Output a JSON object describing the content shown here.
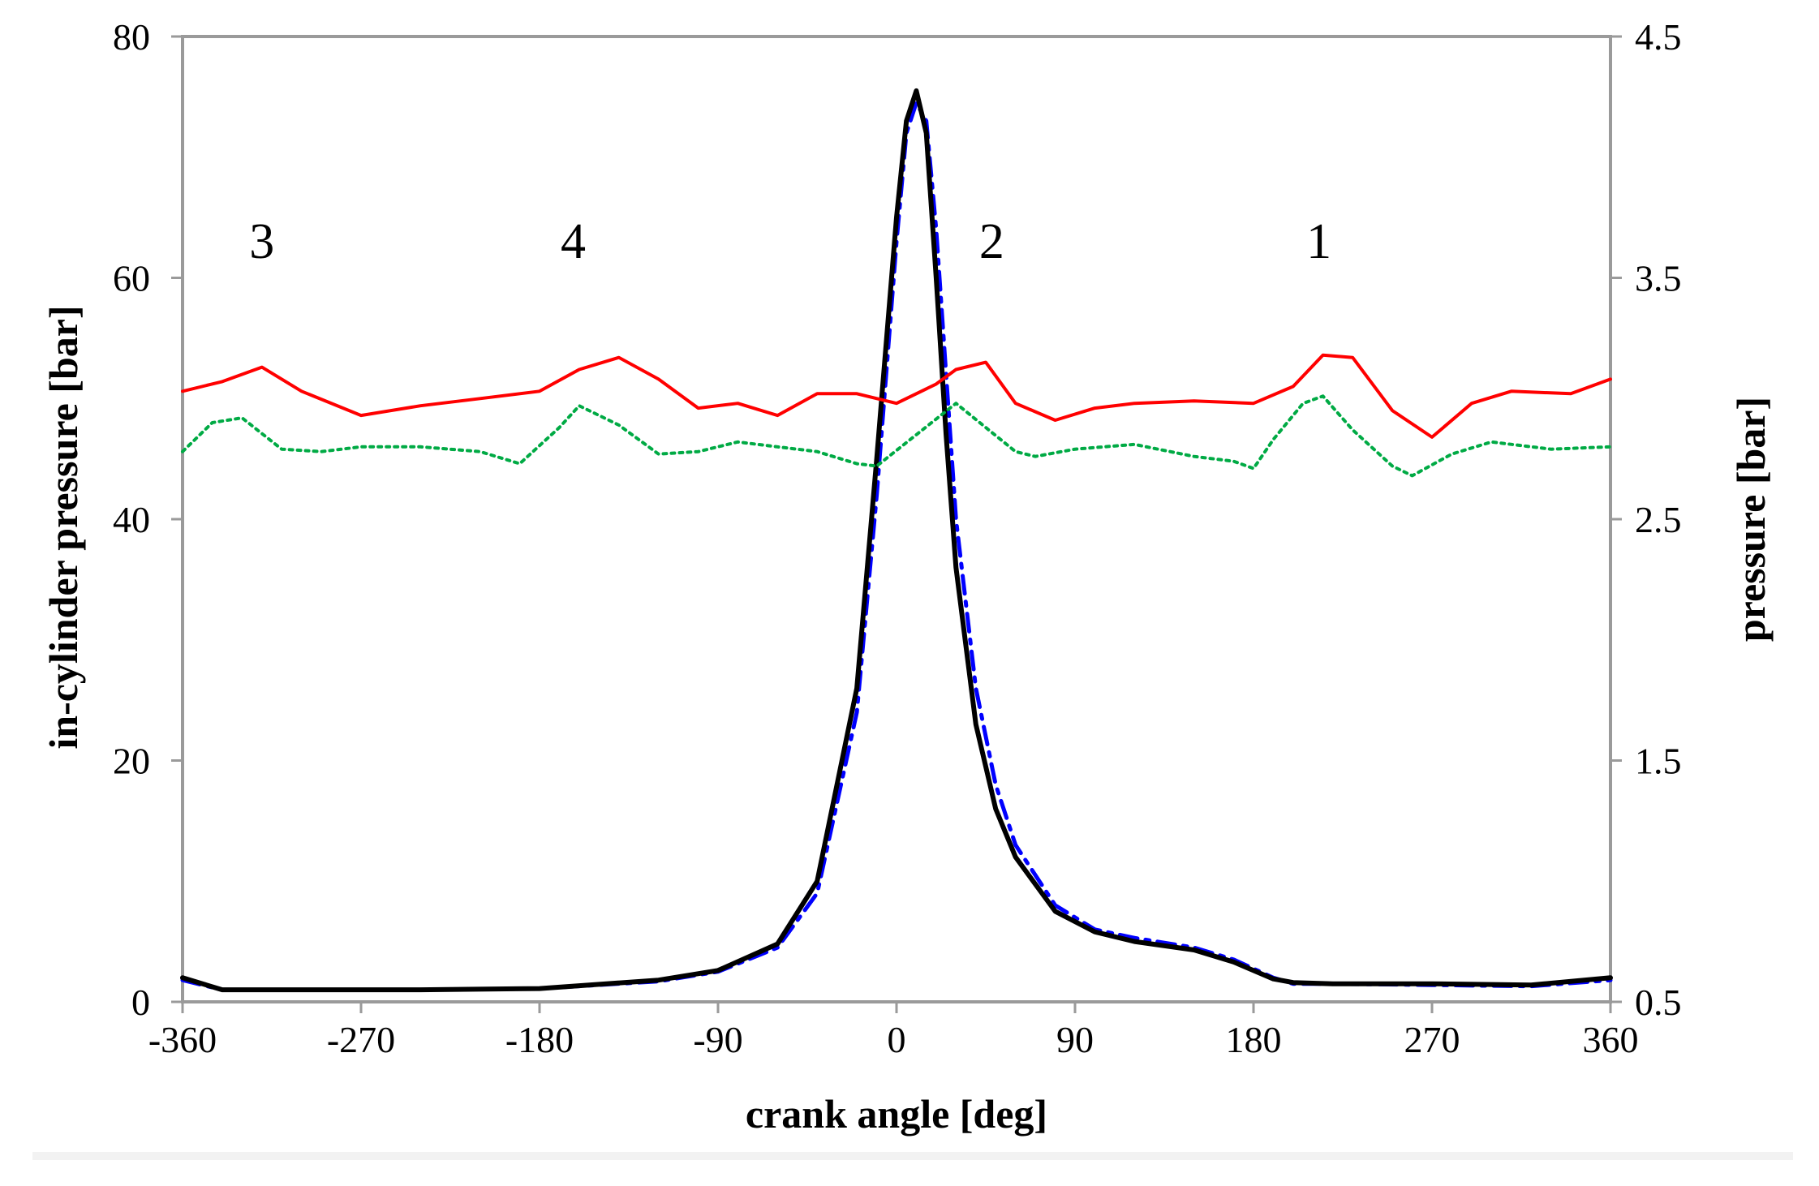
{
  "chart_data": {
    "type": "line",
    "xlabel": "crank angle [deg]",
    "ylabel": "in-cylinder pressure [bar]",
    "y2label": "pressure [bar]",
    "xlim": [
      -360,
      360
    ],
    "ylim": [
      0,
      80
    ],
    "y2lim": [
      0.5,
      4.5
    ],
    "x_ticks": [
      "-360",
      "-270",
      "-180",
      "-90",
      "0",
      "90",
      "180",
      "270",
      "360"
    ],
    "y_ticks": [
      "0",
      "20",
      "40",
      "60",
      "80"
    ],
    "y2_ticks": [
      "0.5",
      "1.5",
      "2.5",
      "3.5",
      "4.5"
    ],
    "grid": false,
    "legend": "none",
    "annotations": [
      {
        "text": "3",
        "x": -320,
        "y": 63
      },
      {
        "text": "4",
        "x": -163,
        "y": 63
      },
      {
        "text": "2",
        "x": 48,
        "y": 63
      },
      {
        "text": "1",
        "x": 213,
        "y": 63
      }
    ],
    "series": [
      {
        "axis": "left",
        "color": "#0000ff",
        "style": "dashdot",
        "x": [
          -360,
          -340,
          -300,
          -240,
          -180,
          -120,
          -90,
          -60,
          -40,
          -20,
          -10,
          0,
          5,
          10,
          15,
          20,
          25,
          30,
          40,
          50,
          60,
          80,
          100,
          120,
          150,
          170,
          190,
          200,
          220,
          270,
          320,
          360
        ],
        "y": [
          1.8,
          1.0,
          1.0,
          1.0,
          1.1,
          1.7,
          2.5,
          4.5,
          9.0,
          24.0,
          42.0,
          63.0,
          72.0,
          74.5,
          73.0,
          64.0,
          52.0,
          40.0,
          26.0,
          18.0,
          13.0,
          8.0,
          6.0,
          5.3,
          4.5,
          3.5,
          2.0,
          1.5,
          1.5,
          1.4,
          1.3,
          1.8
        ]
      },
      {
        "axis": "left",
        "color": "#000000",
        "style": "solid",
        "x": [
          -360,
          -340,
          -300,
          -240,
          -180,
          -120,
          -90,
          -60,
          -40,
          -20,
          -10,
          0,
          5,
          10,
          15,
          20,
          25,
          30,
          40,
          50,
          60,
          80,
          100,
          120,
          150,
          170,
          190,
          200,
          220,
          270,
          320,
          360
        ],
        "y": [
          2.0,
          1.0,
          1.0,
          1.0,
          1.1,
          1.8,
          2.6,
          4.8,
          10.0,
          26.0,
          45.0,
          65.0,
          73.0,
          75.5,
          72.0,
          60.0,
          47.0,
          36.0,
          23.0,
          16.0,
          12.0,
          7.5,
          5.8,
          5.0,
          4.3,
          3.3,
          1.9,
          1.6,
          1.5,
          1.5,
          1.4,
          2.0
        ]
      },
      {
        "axis": "right",
        "color": "#ff0000",
        "style": "solid",
        "x": [
          -360,
          -340,
          -320,
          -300,
          -270,
          -240,
          -210,
          -180,
          -160,
          -140,
          -120,
          -100,
          -80,
          -60,
          -40,
          -20,
          0,
          20,
          30,
          45,
          60,
          80,
          100,
          120,
          150,
          180,
          200,
          215,
          230,
          250,
          270,
          290,
          310,
          340,
          360
        ],
        "y": [
          3.03,
          3.07,
          3.13,
          3.03,
          2.93,
          2.97,
          3.0,
          3.03,
          3.12,
          3.17,
          3.08,
          2.96,
          2.98,
          2.93,
          3.02,
          3.02,
          2.98,
          3.06,
          3.12,
          3.15,
          2.98,
          2.91,
          2.96,
          2.98,
          2.99,
          2.98,
          3.05,
          3.18,
          3.17,
          2.95,
          2.84,
          2.98,
          3.03,
          3.02,
          3.08
        ]
      },
      {
        "axis": "right",
        "color": "#00aa44",
        "style": "dotted",
        "x": [
          -360,
          -345,
          -330,
          -310,
          -290,
          -270,
          -240,
          -210,
          -190,
          -170,
          -160,
          -140,
          -120,
          -100,
          -80,
          -60,
          -40,
          -20,
          -10,
          10,
          30,
          45,
          60,
          70,
          90,
          120,
          150,
          170,
          180,
          190,
          205,
          215,
          230,
          250,
          260,
          280,
          300,
          330,
          360
        ],
        "y": [
          2.78,
          2.9,
          2.92,
          2.79,
          2.78,
          2.8,
          2.8,
          2.78,
          2.73,
          2.88,
          2.97,
          2.89,
          2.77,
          2.78,
          2.82,
          2.8,
          2.78,
          2.73,
          2.72,
          2.85,
          2.98,
          2.88,
          2.78,
          2.76,
          2.79,
          2.81,
          2.76,
          2.74,
          2.71,
          2.83,
          2.98,
          3.01,
          2.87,
          2.72,
          2.68,
          2.77,
          2.82,
          2.79,
          2.8
        ]
      }
    ]
  }
}
